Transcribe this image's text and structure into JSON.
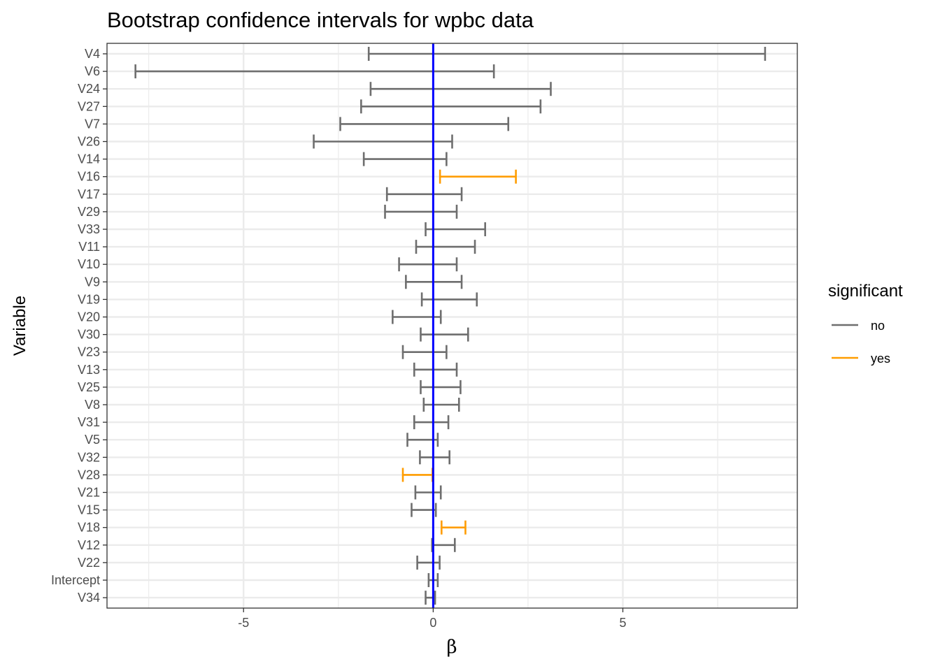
{
  "chart_data": {
    "type": "errorbar",
    "title": "Bootstrap confidence intervals for wpbc data",
    "xlabel": "β",
    "ylabel": "Variable",
    "xlim": [
      -8.6,
      9.6
    ],
    "xticks": [
      -5,
      0,
      5
    ],
    "xtick_labels": [
      "-5",
      "0",
      "5"
    ],
    "reference_line": {
      "x": 0,
      "color": "#0000ff"
    },
    "grid": true,
    "legend": {
      "title": "significant",
      "position": "right",
      "entries": [
        {
          "label": "no",
          "color": "#6e6e6e"
        },
        {
          "label": "yes",
          "color": "#ff9d00"
        }
      ]
    },
    "intervals": [
      {
        "variable": "V4",
        "low": -1.7,
        "high": 8.75,
        "significant": "no"
      },
      {
        "variable": "V6",
        "low": -7.85,
        "high": 1.6,
        "significant": "no"
      },
      {
        "variable": "V24",
        "low": -1.65,
        "high": 3.1,
        "significant": "no"
      },
      {
        "variable": "V27",
        "low": -1.9,
        "high": 2.83,
        "significant": "no"
      },
      {
        "variable": "V7",
        "low": -2.45,
        "high": 1.98,
        "significant": "no"
      },
      {
        "variable": "V26",
        "low": -3.15,
        "high": 0.5,
        "significant": "no"
      },
      {
        "variable": "V14",
        "low": -1.83,
        "high": 0.35,
        "significant": "no"
      },
      {
        "variable": "V16",
        "low": 0.18,
        "high": 2.18,
        "significant": "yes"
      },
      {
        "variable": "V17",
        "low": -1.22,
        "high": 0.75,
        "significant": "no"
      },
      {
        "variable": "V29",
        "low": -1.27,
        "high": 0.62,
        "significant": "no"
      },
      {
        "variable": "V33",
        "low": -0.2,
        "high": 1.37,
        "significant": "no"
      },
      {
        "variable": "V11",
        "low": -0.45,
        "high": 1.1,
        "significant": "no"
      },
      {
        "variable": "V10",
        "low": -0.9,
        "high": 0.62,
        "significant": "no"
      },
      {
        "variable": "V9",
        "low": -0.72,
        "high": 0.75,
        "significant": "no"
      },
      {
        "variable": "V19",
        "low": -0.3,
        "high": 1.15,
        "significant": "no"
      },
      {
        "variable": "V20",
        "low": -1.07,
        "high": 0.2,
        "significant": "no"
      },
      {
        "variable": "V30",
        "low": -0.33,
        "high": 0.92,
        "significant": "no"
      },
      {
        "variable": "V23",
        "low": -0.8,
        "high": 0.35,
        "significant": "no"
      },
      {
        "variable": "V13",
        "low": -0.5,
        "high": 0.62,
        "significant": "no"
      },
      {
        "variable": "V25",
        "low": -0.33,
        "high": 0.72,
        "significant": "no"
      },
      {
        "variable": "V8",
        "low": -0.25,
        "high": 0.68,
        "significant": "no"
      },
      {
        "variable": "V31",
        "low": -0.5,
        "high": 0.4,
        "significant": "no"
      },
      {
        "variable": "V5",
        "low": -0.68,
        "high": 0.12,
        "significant": "no"
      },
      {
        "variable": "V32",
        "low": -0.35,
        "high": 0.43,
        "significant": "no"
      },
      {
        "variable": "V28",
        "low": -0.8,
        "high": -0.02,
        "significant": "yes"
      },
      {
        "variable": "V21",
        "low": -0.47,
        "high": 0.2,
        "significant": "no"
      },
      {
        "variable": "V15",
        "low": -0.57,
        "high": 0.07,
        "significant": "no"
      },
      {
        "variable": "V18",
        "low": 0.22,
        "high": 0.85,
        "significant": "yes"
      },
      {
        "variable": "V12",
        "low": -0.03,
        "high": 0.57,
        "significant": "no"
      },
      {
        "variable": "V22",
        "low": -0.42,
        "high": 0.17,
        "significant": "no"
      },
      {
        "variable": "Intercept",
        "low": -0.12,
        "high": 0.12,
        "significant": "no"
      },
      {
        "variable": "V34",
        "low": -0.2,
        "high": 0.05,
        "significant": "no"
      }
    ]
  }
}
